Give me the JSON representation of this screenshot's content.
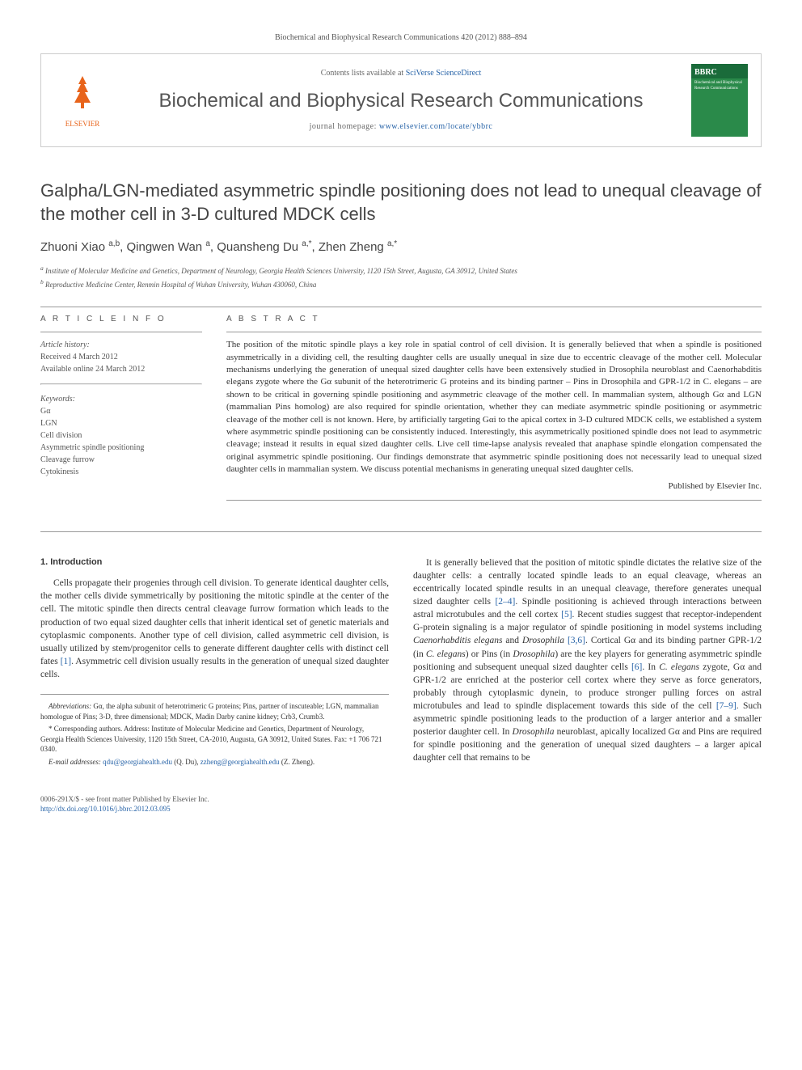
{
  "citation": "Biochemical and Biophysical Research Communications 420 (2012) 888–894",
  "header": {
    "contents_prefix": "Contents lists available at ",
    "contents_link": "SciVerse ScienceDirect",
    "journal": "Biochemical and Biophysical Research Communications",
    "homepage_prefix": "journal homepage: ",
    "homepage_link": "www.elsevier.com/locate/ybbrc",
    "publisher": "ELSEVIER",
    "cover_abbrev": "BBRC"
  },
  "title": "Galpha/LGN-mediated asymmetric spindle positioning does not lead to unequal cleavage of the mother cell in 3-D cultured MDCK cells",
  "authors_html": "Zhuoni Xiao <sup>a,b</sup>, Qingwen Wan <sup>a</sup>, Quansheng Du <sup>a,*</sup>, Zhen Zheng <sup>a,*</sup>",
  "affiliations": {
    "a": "Institute of Molecular Medicine and Genetics, Department of Neurology, Georgia Health Sciences University, 1120 15th Street, Augusta, GA 30912, United States",
    "b": "Reproductive Medicine Center, Renmin Hospital of Wuhan University, Wuhan 430060, China"
  },
  "article_info": {
    "heading": "A R T I C L E   I N F O",
    "history_label": "Article history:",
    "received": "Received 4 March 2012",
    "online": "Available online 24 March 2012",
    "keywords_label": "Keywords:",
    "keywords": [
      "Gα",
      "LGN",
      "Cell division",
      "Asymmetric spindle positioning",
      "Cleavage furrow",
      "Cytokinesis"
    ]
  },
  "abstract": {
    "heading": "A B S T R A C T",
    "text": "The position of the mitotic spindle plays a key role in spatial control of cell division. It is generally believed that when a spindle is positioned asymmetrically in a dividing cell, the resulting daughter cells are usually unequal in size due to eccentric cleavage of the mother cell. Molecular mechanisms underlying the generation of unequal sized daughter cells have been extensively studied in Drosophila neuroblast and Caenorhabditis elegans zygote where the Gα subunit of the heterotrimeric G proteins and its binding partner – Pins in Drosophila and GPR-1/2 in C. elegans – are shown to be critical in governing spindle positioning and asymmetric cleavage of the mother cell. In mammalian system, although Gα and LGN (mammalian Pins homolog) are also required for spindle orientation, whether they can mediate asymmetric spindle positioning or asymmetric cleavage of the mother cell is not known. Here, by artificially targeting Gαi to the apical cortex in 3-D cultured MDCK cells, we established a system where asymmetric spindle positioning can be consistently induced. Interestingly, this asymmetrically positioned spindle does not lead to asymmetric cleavage; instead it results in equal sized daughter cells. Live cell time-lapse analysis revealed that anaphase spindle elongation compensated the original asymmetric spindle positioning. Our findings demonstrate that asymmetric spindle positioning does not necessarily lead to unequal sized daughter cells in mammalian system. We discuss potential mechanisms in generating unequal sized daughter cells.",
    "publisher": "Published by Elsevier Inc."
  },
  "section1": {
    "heading": "1. Introduction",
    "p1": "Cells propagate their progenies through cell division. To generate identical daughter cells, the mother cells divide symmetrically by positioning the mitotic spindle at the center of the cell. The mitotic spindle then directs central cleavage furrow formation which leads to the production of two equal sized daughter cells that inherit identical set of genetic materials and cytoplasmic components. Another type of cell division, called asymmetric cell division, is usually utilized by stem/progenitor cells to generate different daughter cells with distinct cell fates [1]. Asymmetric cell division usually results in the generation of unequal sized daughter cells.",
    "p2": "It is generally believed that the position of mitotic spindle dictates the relative size of the daughter cells: a centrally located spindle leads to an equal cleavage, whereas an eccentrically located spindle results in an unequal cleavage, therefore generates unequal sized daughter cells [2–4]. Spindle positioning is achieved through interactions between astral microtubules and the cell cortex [5]. Recent studies suggest that receptor-independent G-protein signaling is a major regulator of spindle positioning in model systems including Caenorhabditis elegans and Drosophila [3,6]. Cortical Gα and its binding partner GPR-1/2 (in C. elegans) or Pins (in Drosophila) are the key players for generating asymmetric spindle positioning and subsequent unequal sized daughter cells [6]. In C. elegans zygote, Gα and GPR-1/2 are enriched at the posterior cell cortex where they serve as force generators, probably through cytoplasmic dynein, to produce stronger pulling forces on astral microtubules and lead to spindle displacement towards this side of the cell [7–9]. Such asymmetric spindle positioning leads to the production of a larger anterior and a smaller posterior daughter cell. In Drosophila neuroblast, apically localized Gα and Pins are required for spindle positioning and the generation of unequal sized daughters – a larger apical daughter cell that remains to be"
  },
  "footnotes": {
    "abbrev_label": "Abbreviations:",
    "abbrev": " Gα, the alpha subunit of heterotrimeric G proteins; Pins, partner of inscuteable; LGN, mammalian homologue of Pins; 3-D, three dimensional; MDCK, Madin Darby canine kidney; Crb3, Crumb3.",
    "corr": "* Corresponding authors. Address: Institute of Molecular Medicine and Genetics, Department of Neurology, Georgia Health Sciences University, 1120 15th Street, CA-2010, Augusta, GA 30912, United States. Fax: +1 706 721 0340.",
    "email_label": "E-mail addresses:",
    "email1": "qdu@georgiahealth.edu",
    "email1_name": " (Q. Du), ",
    "email2": "zzheng@georgiahealth.edu",
    "email2_name": " (Z. Zheng)."
  },
  "footer": {
    "copyright": "0006-291X/$ - see front matter Published by Elsevier Inc.",
    "doi": "http://dx.doi.org/10.1016/j.bbrc.2012.03.095"
  },
  "colors": {
    "link": "#2864a8",
    "elsevier": "#e8641b",
    "text": "#333333"
  }
}
